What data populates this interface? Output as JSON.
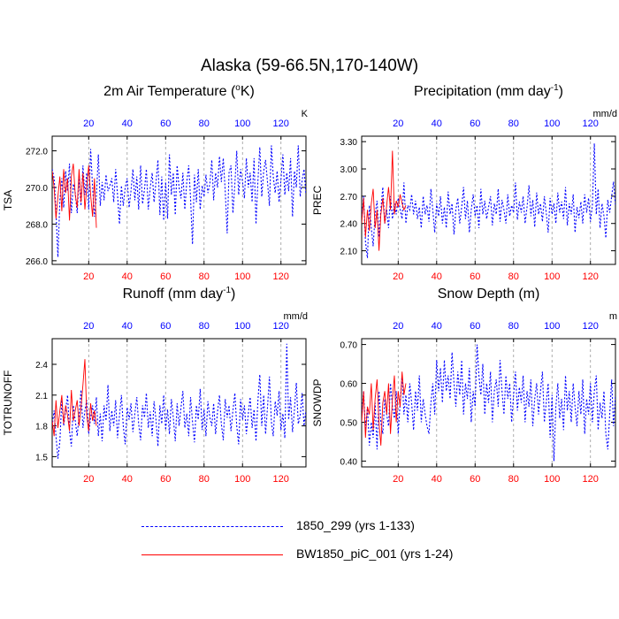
{
  "figure": {
    "title": "Alaska (59-66.5N,170-140W)"
  },
  "legend": [
    {
      "label": "1850_299 (yrs 1-133)",
      "color": "#0000ff",
      "style": "dashed"
    },
    {
      "label": "BW1850_piC_001 (yrs 1-24)",
      "color": "#ff0000",
      "style": "solid"
    }
  ],
  "chart_data": [
    {
      "type": "line",
      "title": "2m Air Temperature (ºK)",
      "ylabel": "TSA",
      "units": "K",
      "xlim": [
        1,
        133
      ],
      "ylim": [
        265.8,
        272.8
      ],
      "yticks": [
        266.0,
        268.0,
        270.0,
        272.0
      ],
      "ytick_labels": [
        "266.0",
        "268.0",
        "270.0",
        "272.0"
      ],
      "xticks_top": [
        20,
        40,
        60,
        80,
        100,
        120
      ],
      "xticks_bottom": [
        20,
        40,
        60,
        80,
        100,
        120
      ],
      "grid": "vertical dashed",
      "series": [
        {
          "name": "1850_299 (yrs 1-133)",
          "values": [
            271.0,
            270.5,
            268.7,
            266.2,
            269.3,
            270.5,
            268.9,
            270.9,
            269.8,
            271.3,
            268.6,
            270.2,
            269.7,
            268.6,
            270.6,
            269.0,
            271.2,
            269.6,
            270.8,
            268.8,
            272.1,
            270.0,
            268.4,
            269.5,
            271.8,
            269.0,
            270.3,
            269.3,
            270.7,
            269.8,
            270.1,
            270.5,
            269.2,
            271.0,
            269.6,
            268.0,
            270.1,
            269.0,
            270.0,
            270.5,
            268.9,
            269.8,
            271.0,
            269.3,
            270.6,
            268.8,
            271.2,
            269.1,
            269.9,
            271.0,
            268.8,
            270.0,
            270.8,
            269.2,
            270.3,
            271.5,
            268.5,
            270.6,
            268.2,
            270.3,
            268.3,
            271.8,
            269.6,
            270.8,
            268.5,
            271.2,
            270.0,
            269.4,
            270.8,
            268.8,
            270.3,
            271.2,
            269.4,
            266.9,
            270.7,
            269.2,
            271.0,
            268.8,
            270.1,
            269.5,
            270.7,
            269.7,
            270.2,
            271.5,
            269.3,
            270.8,
            270.0,
            271.7,
            270.3,
            271.6,
            269.8,
            267.5,
            270.8,
            271.2,
            268.6,
            270.2,
            272.0,
            269.6,
            271.0,
            270.3,
            269.4,
            271.6,
            270.0,
            270.8,
            269.2,
            271.6,
            268.0,
            270.3,
            272.2,
            269.5,
            270.9,
            271.5,
            270.3,
            269.0,
            272.3,
            270.6,
            269.7,
            270.9,
            269.2,
            270.4,
            271.8,
            269.6,
            270.8,
            269.8,
            271.6,
            268.4,
            270.9,
            270.0,
            272.3,
            269.5,
            270.4,
            271.0,
            269.6
          ]
        },
        {
          "name": "BW1850_piC_001 (yrs 1-24)",
          "values": [
            270.9,
            270.0,
            268.3,
            269.5,
            270.6,
            268.7,
            271.0,
            269.7,
            270.5,
            268.2,
            270.6,
            271.3,
            269.6,
            268.9,
            271.0,
            269.2,
            270.8,
            268.8,
            270.0,
            271.2,
            269.6,
            268.4,
            270.5,
            267.8
          ]
        }
      ]
    },
    {
      "type": "line",
      "title": "Precipitation (mm day-1)",
      "ylabel": "PREC",
      "units": "mm/d",
      "xlim": [
        1,
        133
      ],
      "ylim": [
        1.95,
        3.36
      ],
      "yticks": [
        2.1,
        2.4,
        2.7,
        3.0,
        3.3
      ],
      "ytick_labels": [
        "2.10",
        "2.40",
        "2.70",
        "3.00",
        "3.30"
      ],
      "xticks_top": [
        20,
        40,
        60,
        80,
        100,
        120
      ],
      "xticks_bottom": [
        20,
        40,
        60,
        80,
        100,
        120
      ],
      "grid": "vertical dashed",
      "series": [
        {
          "name": "1850_299 (yrs 1-133)",
          "values": [
            2.45,
            2.7,
            2.2,
            2.02,
            2.6,
            2.35,
            2.15,
            2.5,
            2.65,
            2.25,
            2.55,
            2.8,
            2.4,
            2.55,
            2.35,
            2.7,
            2.45,
            2.62,
            2.5,
            2.68,
            2.55,
            2.45,
            2.85,
            2.4,
            2.6,
            2.55,
            2.72,
            2.5,
            2.65,
            2.45,
            2.58,
            2.35,
            2.7,
            2.5,
            2.6,
            2.42,
            2.78,
            2.55,
            2.3,
            2.62,
            2.48,
            2.7,
            2.4,
            2.58,
            2.35,
            2.75,
            2.5,
            2.62,
            2.28,
            2.55,
            2.68,
            2.4,
            2.58,
            2.8,
            2.45,
            2.65,
            2.3,
            2.55,
            2.72,
            2.48,
            2.6,
            2.35,
            2.78,
            2.5,
            2.65,
            2.45,
            2.58,
            2.7,
            2.38,
            2.62,
            2.5,
            2.78,
            2.42,
            2.66,
            2.55,
            2.4,
            2.72,
            2.48,
            2.6,
            2.52,
            2.85,
            2.44,
            2.64,
            2.52,
            2.7,
            2.4,
            2.58,
            2.82,
            2.48,
            2.66,
            2.36,
            2.74,
            2.5,
            2.62,
            2.42,
            2.7,
            2.52,
            2.3,
            2.68,
            2.5,
            2.62,
            2.4,
            2.74,
            2.52,
            2.64,
            2.45,
            2.8,
            2.38,
            2.62,
            2.5,
            2.72,
            2.3,
            2.58,
            2.46,
            2.64,
            2.4,
            2.72,
            2.52,
            2.68,
            2.42,
            2.6,
            3.28,
            2.5,
            2.78,
            2.35,
            2.62,
            2.48,
            2.24,
            2.66,
            2.52,
            2.7,
            2.86,
            2.6
          ]
        },
        {
          "name": "BW1850_piC_001 (yrs 1-24)",
          "values": [
            2.4,
            2.68,
            2.25,
            2.55,
            2.32,
            2.62,
            2.78,
            2.35,
            2.55,
            2.1,
            2.5,
            2.68,
            2.4,
            2.6,
            2.8,
            2.55,
            3.2,
            2.5,
            2.65,
            2.58,
            2.72,
            2.62,
            2.55,
            2.6
          ]
        }
      ]
    },
    {
      "type": "line",
      "title": "Runoff (mm day-1)",
      "ylabel": "TOTRUNOFF",
      "units": "mm/d",
      "xlim": [
        1,
        133
      ],
      "ylim": [
        1.4,
        2.65
      ],
      "yticks": [
        1.5,
        1.8,
        2.1,
        2.4
      ],
      "ytick_labels": [
        "1.5",
        "1.8",
        "2.1",
        "2.4"
      ],
      "xticks_top": [
        20,
        40,
        60,
        80,
        100,
        120
      ],
      "xticks_bottom": [
        20,
        40,
        60,
        80,
        100,
        120
      ],
      "grid": "vertical dashed",
      "series": [
        {
          "name": "1850_299 (yrs 1-133)",
          "values": [
            1.8,
            1.95,
            1.7,
            1.48,
            1.65,
            2.05,
            1.8,
            1.95,
            2.1,
            1.75,
            1.6,
            2.0,
            1.85,
            1.7,
            1.9,
            2.15,
            1.78,
            1.95,
            2.05,
            1.72,
            1.88,
            2.0,
            1.82,
            2.08,
            1.7,
            1.92,
            1.65,
            2.0,
            1.85,
            2.2,
            1.75,
            1.95,
            1.8,
            2.05,
            1.68,
            1.9,
            2.1,
            1.8,
            1.62,
            1.98,
            1.86,
            2.02,
            1.74,
            1.92,
            2.08,
            1.82,
            1.66,
            2.0,
            1.88,
            2.12,
            1.78,
            1.94,
            1.7,
            2.04,
            1.86,
            1.6,
            2.0,
            1.82,
            2.1,
            1.76,
            1.96,
            1.72,
            2.06,
            1.88,
            1.65,
            2.02,
            1.8,
            1.98,
            2.14,
            1.78,
            1.92,
            1.7,
            2.08,
            1.84,
            1.64,
            2.0,
            1.86,
            2.16,
            1.76,
            1.96,
            1.7,
            2.04,
            1.88,
            1.8,
            2.02,
            1.72,
            1.94,
            2.1,
            1.82,
            1.66,
            2.06,
            1.88,
            2.0,
            1.75,
            1.95,
            2.12,
            1.8,
            1.62,
            2.06,
            1.86,
            2.0,
            1.72,
            1.92,
            2.08,
            1.78,
            1.96,
            1.65,
            2.04,
            2.3,
            1.8,
            2.1,
            1.72,
            1.98,
            2.28,
            1.84,
            1.7,
            2.04,
            1.9,
            2.14,
            1.76,
            1.92,
            1.68,
            2.6,
            1.86,
            2.08,
            1.74,
            1.96,
            2.22,
            1.82,
            1.9,
            2.12,
            1.8,
            1.95
          ]
        },
        {
          "name": "BW1850_piC_001 (yrs 1-24)",
          "values": [
            1.85,
            1.7,
            2.05,
            1.78,
            1.95,
            2.1,
            1.82,
            2.0,
            1.9,
            1.75,
            2.15,
            1.85,
            1.95,
            2.05,
            1.8,
            1.98,
            2.2,
            2.45,
            1.9,
            1.75,
            2.02,
            1.85,
            1.95,
            1.8
          ]
        }
      ]
    },
    {
      "type": "line",
      "title": "Snow Depth (m)",
      "ylabel": "SNOWDP",
      "units": "m",
      "xlim": [
        1,
        133
      ],
      "ylim": [
        0.385,
        0.715
      ],
      "yticks": [
        0.4,
        0.5,
        0.6,
        0.7
      ],
      "ytick_labels": [
        "0.40",
        "0.50",
        "0.60",
        "0.70"
      ],
      "xticks_top": [
        20,
        40,
        60,
        80,
        100,
        120
      ],
      "xticks_bottom": [
        20,
        40,
        60,
        80,
        100,
        120
      ],
      "grid": "vertical dashed",
      "series": [
        {
          "name": "1850_299 (yrs 1-133)",
          "values": [
            0.52,
            0.58,
            0.48,
            0.54,
            0.44,
            0.5,
            0.46,
            0.55,
            0.43,
            0.58,
            0.5,
            0.47,
            0.56,
            0.52,
            0.49,
            0.6,
            0.54,
            0.51,
            0.58,
            0.47,
            0.55,
            0.62,
            0.52,
            0.57,
            0.5,
            0.6,
            0.55,
            0.48,
            0.58,
            0.53,
            0.62,
            0.5,
            0.56,
            0.52,
            0.49,
            0.47,
            0.55,
            0.6,
            0.52,
            0.66,
            0.58,
            0.64,
            0.55,
            0.66,
            0.58,
            0.62,
            0.56,
            0.68,
            0.6,
            0.54,
            0.63,
            0.57,
            0.66,
            0.52,
            0.6,
            0.56,
            0.64,
            0.5,
            0.58,
            0.54,
            0.7,
            0.62,
            0.57,
            0.65,
            0.52,
            0.6,
            0.55,
            0.63,
            0.5,
            0.58,
            0.61,
            0.54,
            0.66,
            0.58,
            0.52,
            0.62,
            0.56,
            0.6,
            0.5,
            0.57,
            0.63,
            0.53,
            0.59,
            0.55,
            0.62,
            0.5,
            0.58,
            0.54,
            0.61,
            0.49,
            0.56,
            0.6,
            0.52,
            0.58,
            0.63,
            0.5,
            0.55,
            0.6,
            0.46,
            0.57,
            0.4,
            0.54,
            0.6,
            0.51,
            0.56,
            0.48,
            0.62,
            0.53,
            0.58,
            0.5,
            0.6,
            0.54,
            0.49,
            0.58,
            0.52,
            0.61,
            0.47,
            0.56,
            0.52,
            0.6,
            0.5,
            0.58,
            0.62,
            0.48,
            0.55,
            0.51,
            0.58,
            0.47,
            0.43,
            0.52,
            0.61,
            0.49,
            0.57
          ]
        },
        {
          "name": "BW1850_piC_001 (yrs 1-24)",
          "values": [
            0.5,
            0.58,
            0.46,
            0.54,
            0.52,
            0.6,
            0.48,
            0.56,
            0.61,
            0.5,
            0.44,
            0.55,
            0.58,
            0.52,
            0.6,
            0.47,
            0.56,
            0.62,
            0.5,
            0.58,
            0.54,
            0.63,
            0.57,
            0.6
          ]
        }
      ]
    }
  ]
}
